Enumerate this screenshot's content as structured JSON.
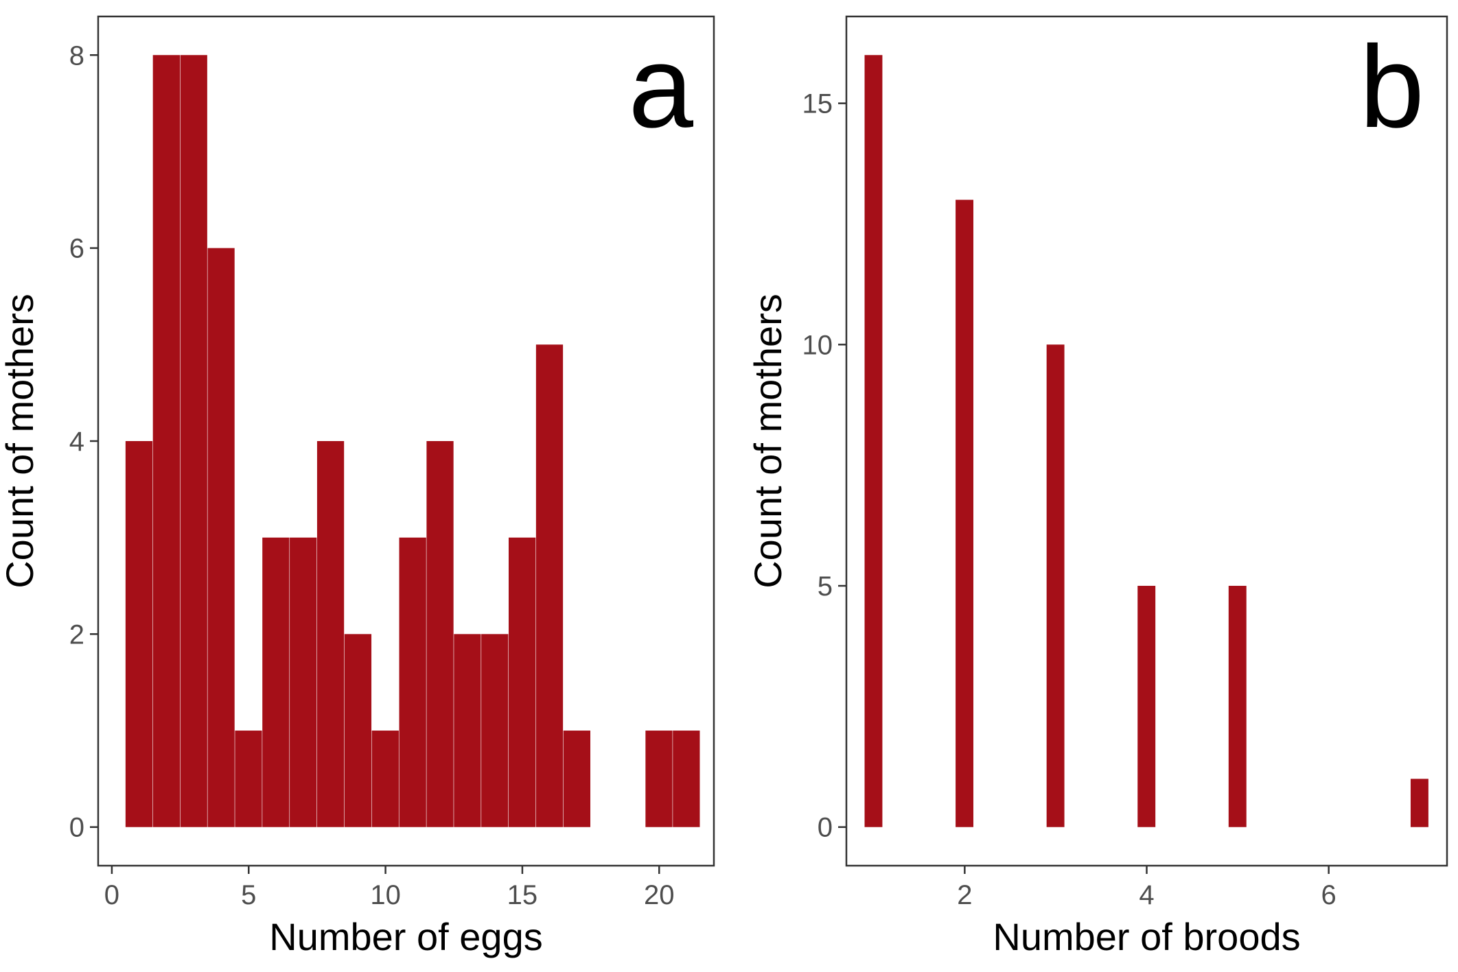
{
  "colors": {
    "bar": "#a50f18",
    "frame": "#333333",
    "tick_text": "#4d4d4d"
  },
  "chart_data": [
    {
      "type": "bar",
      "panel_label": "a",
      "xlabel": "Number of eggs",
      "ylabel": "Count of mothers",
      "bin_width": 1,
      "x": [
        1,
        2,
        3,
        4,
        5,
        6,
        7,
        8,
        9,
        10,
        11,
        12,
        13,
        14,
        15,
        16,
        17,
        18,
        19,
        20,
        21
      ],
      "values": [
        4,
        8,
        8,
        6,
        1,
        3,
        3,
        4,
        2,
        1,
        3,
        4,
        2,
        2,
        3,
        5,
        1,
        0,
        0,
        1,
        1
      ],
      "xlim": [
        -0.5,
        22
      ],
      "ylim": [
        -0.4,
        8.4
      ],
      "xticks": [
        0,
        5,
        10,
        15,
        20
      ],
      "xtick_labels": [
        "0",
        "5",
        "10",
        "15",
        "20"
      ],
      "yticks": [
        0,
        2,
        4,
        6,
        8
      ],
      "ytick_labels": [
        "0",
        "2",
        "4",
        "6",
        "8"
      ],
      "grid": false,
      "legend": "none"
    },
    {
      "type": "bar",
      "panel_label": "b",
      "xlabel": "Number of broods",
      "ylabel": "Count of mothers",
      "bin_width": 0.2,
      "x": [
        1,
        2,
        3,
        4,
        5,
        7
      ],
      "values": [
        16,
        13,
        10,
        5,
        5,
        1
      ],
      "xlim": [
        0.7,
        7.3
      ],
      "ylim": [
        -0.8,
        16.8
      ],
      "xticks": [
        2,
        4,
        6
      ],
      "xtick_labels": [
        "2",
        "4",
        "6"
      ],
      "yticks": [
        0,
        5,
        10,
        15
      ],
      "ytick_labels": [
        "0",
        "5",
        "10",
        "15"
      ],
      "grid": false,
      "legend": "none"
    }
  ]
}
